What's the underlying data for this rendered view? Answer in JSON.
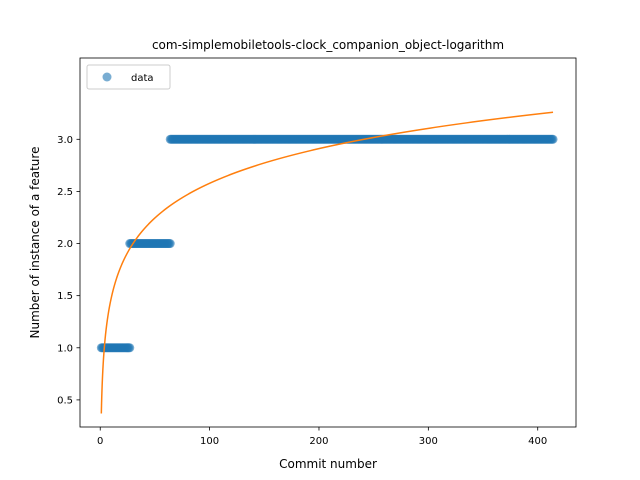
{
  "chart_data": {
    "type": "scatter",
    "title": "com-simplemobiletools-clock_companion_object-logarithm",
    "xlabel": "Commit number",
    "ylabel": "Number of instance of a feature",
    "xlim": [
      -18.5,
      435
    ],
    "ylim": [
      0.24,
      3.78
    ],
    "xticks": [
      0,
      100,
      200,
      300,
      400
    ],
    "yticks": [
      0.5,
      1.0,
      1.5,
      2.0,
      2.5,
      3.0
    ],
    "xtick_labels": [
      "0",
      "100",
      "200",
      "300",
      "400"
    ],
    "ytick_labels": [
      "0.5",
      "1.0",
      "1.5",
      "2.0",
      "2.5",
      "3.0"
    ],
    "legend": {
      "position": "top-left",
      "entries": [
        "data"
      ]
    },
    "grid": false,
    "series": [
      {
        "name": "data",
        "kind": "scatter",
        "color": "#1f77b4",
        "segments": [
          {
            "x_from": 1,
            "x_to": 27,
            "y": 1.0
          },
          {
            "x_from": 27,
            "x_to": 64,
            "y": 2.0
          },
          {
            "x_from": 64,
            "x_to": 414,
            "y": 3.0
          }
        ]
      },
      {
        "kind": "line",
        "color": "#ff7f0e",
        "fit": {
          "form": "a + b*ln(x)",
          "a": 0.37,
          "b": 0.4795,
          "x_from": 1,
          "x_to": 414
        }
      }
    ]
  }
}
